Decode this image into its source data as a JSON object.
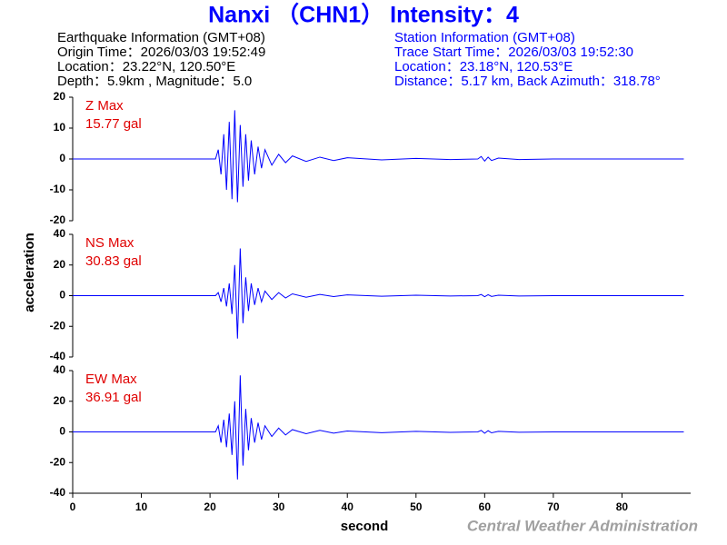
{
  "header": {
    "title": "Nanxi （CHN1） Intensity：4",
    "left": [
      "Earthquake Information  (GMT+08)",
      "Origin Time：2026/03/03 19:52:49",
      "Location：23.22°N, 120.50°E",
      "Depth：5.9km , Magnitude：5.0"
    ],
    "right": [
      "Station Information  (GMT+08)",
      "Trace Start Time：2026/03/03 19:52:30",
      "Location：23.18°N, 120.53°E",
      "Distance：5.17 km, Back Azimuth：318.78°"
    ]
  },
  "axes": {
    "ylabel": "acceleration",
    "xlabel": "second"
  },
  "footer": {
    "credit": "Central Weather Administration"
  },
  "chart_data": [
    {
      "type": "line",
      "max_label": "Z Max",
      "max_value": "15.77 gal",
      "color": "#0000ff",
      "x": [
        0,
        20.8,
        21.2,
        21.6,
        22,
        22.4,
        22.8,
        23.2,
        23.6,
        24,
        24.4,
        24.8,
        25.2,
        25.6,
        26,
        26.5,
        27,
        27.5,
        28,
        29,
        30,
        31,
        32,
        34,
        36,
        38,
        40,
        45,
        50,
        55,
        59,
        59.5,
        60,
        60.5,
        61,
        62,
        65,
        70,
        89
      ],
      "values": [
        0,
        0,
        3,
        -5,
        8,
        -10,
        12,
        -13,
        15.77,
        -14,
        11,
        -9,
        8,
        -7,
        6,
        -5,
        4,
        -3,
        3,
        -2,
        1.5,
        -1.2,
        1,
        -0.8,
        0.6,
        -0.5,
        0.4,
        -0.3,
        0.2,
        -0.2,
        0,
        0.8,
        -0.7,
        0.6,
        -0.5,
        0.3,
        -0.2,
        0,
        0
      ],
      "xlim": [
        0,
        90
      ],
      "ylim": [
        -20,
        20
      ],
      "yticks": [
        -20,
        -10,
        0,
        10,
        20
      ]
    },
    {
      "type": "line",
      "max_label": "NS Max",
      "max_value": "30.83 gal",
      "color": "#0000ff",
      "x": [
        0,
        20.8,
        21.2,
        21.6,
        22,
        22.4,
        22.8,
        23.2,
        23.6,
        24,
        24.4,
        24.8,
        25.2,
        25.6,
        26,
        26.5,
        27,
        27.5,
        28,
        29,
        30,
        31,
        32,
        34,
        36,
        38,
        40,
        45,
        50,
        55,
        59,
        59.5,
        60,
        60.5,
        61,
        62,
        65,
        70,
        89
      ],
      "values": [
        0,
        0,
        2,
        -4,
        5,
        -7,
        8,
        -12,
        20,
        -28,
        30.83,
        -18,
        12,
        -10,
        8,
        -6,
        5,
        -4,
        3,
        -2.5,
        2,
        -1.5,
        1.2,
        -1,
        0.8,
        -0.6,
        0.5,
        -0.4,
        0.3,
        -0.2,
        0,
        0.8,
        -0.7,
        0.6,
        -0.5,
        0.3,
        -0.2,
        0,
        0
      ],
      "xlim": [
        0,
        90
      ],
      "ylim": [
        -40,
        40
      ],
      "yticks": [
        -40,
        -20,
        0,
        20,
        40
      ]
    },
    {
      "type": "line",
      "max_label": "EW Max",
      "max_value": "36.91 gal",
      "color": "#0000ff",
      "x": [
        0,
        20.8,
        21.2,
        21.6,
        22,
        22.4,
        22.8,
        23.2,
        23.6,
        24,
        24.4,
        24.8,
        25.2,
        25.6,
        26,
        26.5,
        27,
        27.5,
        28,
        29,
        30,
        31,
        32,
        34,
        36,
        38,
        40,
        45,
        50,
        55,
        59,
        59.5,
        60,
        60.5,
        61,
        62,
        65,
        70,
        89
      ],
      "values": [
        0,
        0,
        4,
        -7,
        8,
        -10,
        12,
        -15,
        20,
        -31,
        36.91,
        -22,
        15,
        -12,
        9,
        -7,
        6,
        -5,
        4,
        -3,
        2.5,
        -2,
        1.5,
        -1.2,
        1,
        -0.8,
        0.6,
        -0.5,
        0.4,
        -0.3,
        0,
        1,
        -0.9,
        0.8,
        -0.6,
        0.4,
        -0.2,
        0,
        0
      ],
      "xlim": [
        0,
        90
      ],
      "ylim": [
        -40,
        40
      ],
      "yticks": [
        -40,
        -20,
        0,
        20,
        40
      ],
      "xticks": [
        0,
        10,
        20,
        30,
        40,
        50,
        60,
        70,
        80
      ]
    }
  ]
}
